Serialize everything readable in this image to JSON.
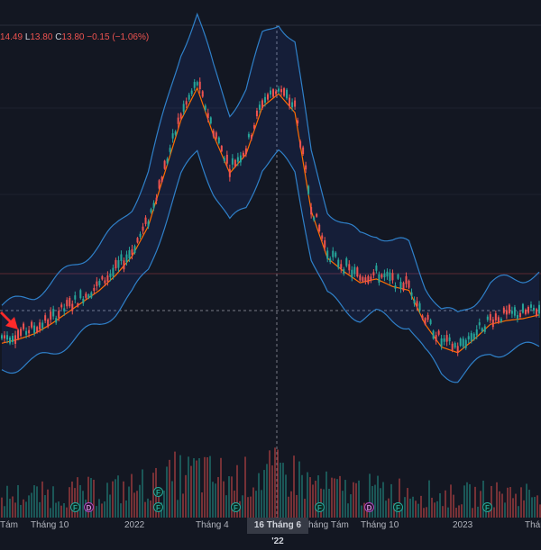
{
  "ohlc": {
    "h_value": "14.49",
    "l_key": "L",
    "l_value": "13.80",
    "c_key": "C",
    "c_value": "13.80",
    "change": "−0.15 (−1.06%)"
  },
  "crosshair": {
    "date_label": "16 Tháng 6 '22"
  },
  "x_axis": {
    "labels": [
      "Tám",
      "Tháng 10",
      "2022",
      "Tháng 4",
      "háng Tám",
      "Tháng 10",
      "2023",
      "Tháng"
    ]
  },
  "events": [
    "F",
    "D",
    "F",
    "F",
    "F",
    "F",
    "D",
    "F",
    "F"
  ],
  "colors": {
    "background": "#131722",
    "up": "#26a69a",
    "down": "#ef5350",
    "band": "#2962ff",
    "basis": "#ff6d00"
  },
  "chart_data": {
    "type": "candlestick",
    "series": [
      {
        "values": [
          50,
          52,
          55,
          60,
          66,
          72,
          78,
          86,
          96,
          112,
          140,
          168,
          185,
          160,
          140,
          150,
          175,
          182,
          172,
          120,
          95,
          88,
          82,
          84,
          80,
          78,
          60,
          48,
          45,
          52,
          60,
          62,
          63,
          65
        ]
      }
    ],
    "grid": true,
    "legend": "none"
  }
}
